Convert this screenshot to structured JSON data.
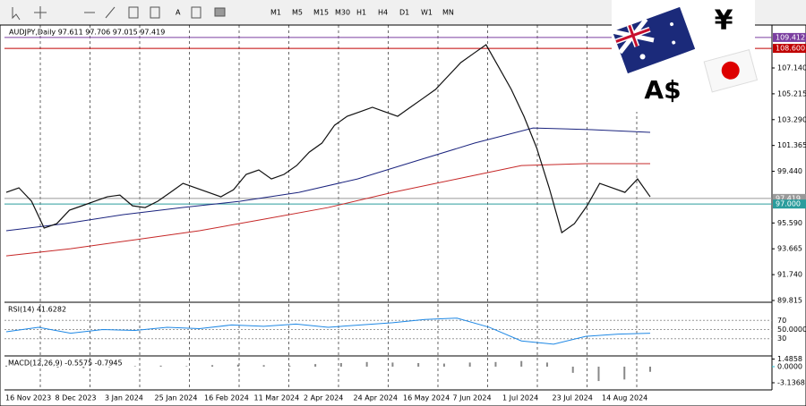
{
  "toolbar": {
    "timeframes": [
      "M1",
      "M5",
      "M15",
      "M30",
      "H1",
      "H4",
      "D1",
      "W1",
      "MN"
    ]
  },
  "logo": {
    "yen": "¥",
    "aud": "A$"
  },
  "chart": {
    "header": "AUDJPY,Daily  97.611 97.706 97.015 97.419",
    "price_ticks": [
      109.412,
      {
        "value": 108.6,
        "label": "108.600"
      },
      {
        "value": 107.14,
        "label": "107.140"
      },
      105.215,
      {
        "value": 103.29,
        "label": "103.290"
      },
      101.365,
      {
        "value": 99.44,
        "label": "99.440"
      },
      97.419,
      {
        "value": 97,
        "label": "97.000"
      },
      {
        "value": 95.59,
        "label": "95.590"
      },
      93.665,
      {
        "value": 91.74,
        "label": "91.740"
      },
      89.815
    ],
    "close": [
      97.87,
      98.21,
      97.21,
      95.21,
      95.54,
      96.54,
      96.87,
      97.21,
      97.54,
      97.67,
      96.87,
      96.74,
      97.21,
      97.87,
      98.54,
      98.21,
      97.87,
      97.54,
      98.07,
      99.21,
      99.54,
      98.87,
      99.21,
      99.87,
      100.87,
      101.54,
      102.87,
      103.54,
      103.87,
      104.21,
      103.87,
      103.54,
      104.21,
      104.87,
      105.54,
      106.54,
      107.54,
      108.21,
      108.87,
      107.21,
      105.54,
      103.54,
      101.21,
      98.21,
      94.87,
      95.54,
      96.87,
      98.54,
      98.21,
      97.87,
      98.87,
      97.54
    ],
    "ma_long": [
      95.01,
      95.54,
      96.21,
      96.74,
      97.21,
      97.87,
      98.87,
      100.21,
      101.54,
      102.67,
      102.54,
      102.34
    ],
    "ma_mid": [
      93.14,
      93.67,
      94.34,
      95.01,
      95.87,
      96.74,
      97.87,
      98.87,
      99.87,
      100.01,
      100.01
    ],
    "dates": [
      "16 Nov 2023",
      "8 Dec 2023",
      "3 Jan 2024",
      "25 Jan 2024",
      "16 Feb 2024",
      "11 Mar 2024",
      "2 Apr 2024",
      "24 Apr 2024",
      "16 May 2024",
      "7 Jun 2024",
      "1 Jul 2024",
      "23 Jul 2024",
      "14 Aug 2024"
    ]
  },
  "rsi": {
    "label": "RSI(14) 41.6282",
    "ticks": [
      70,
      {
        "value": 50,
        "label": "50.0000"
      },
      30
    ],
    "values": [
      45,
      55,
      42,
      50,
      48,
      55,
      52,
      60,
      57,
      62,
      55,
      60,
      65,
      72,
      75,
      55,
      25,
      18,
      35,
      40,
      42
    ]
  },
  "macd": {
    "label": "MACD(12,26,9) -0.5575 -0.7945",
    "ticks": [
      {
        "value": 1.4858,
        "label": "1.4858"
      },
      {
        "value": 0,
        "label": "0.0000"
      },
      -3.1368
    ],
    "values": [
      0.2,
      0.1,
      -0.2,
      -0.3,
      -0.1,
      0.1,
      0.2,
      0.1,
      0.3,
      0.4,
      0.3,
      0.2,
      0.5,
      0.7,
      0.9,
      0.8,
      0.7,
      0.6,
      0.8,
      0.9,
      1.1,
      0.8,
      -1.2,
      -2.8,
      -2.5,
      -1.0
    ]
  }
}
